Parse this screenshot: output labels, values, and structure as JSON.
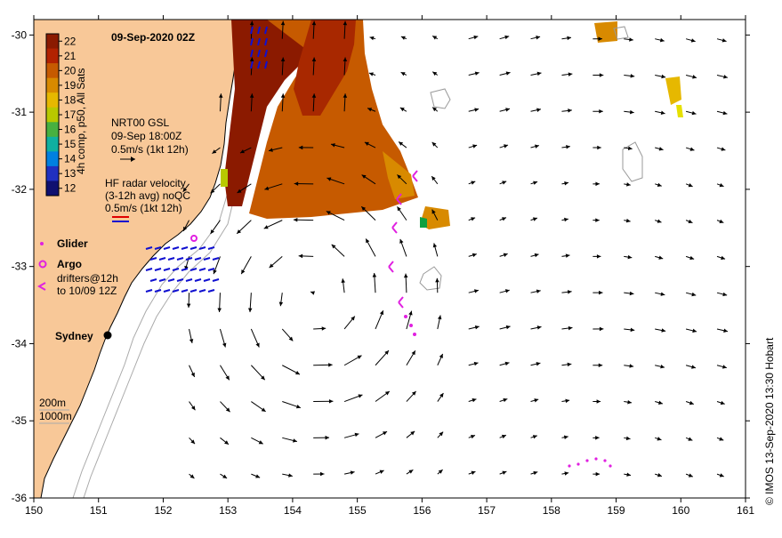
{
  "title": "09-Sep-2020 02Z",
  "colorbar": {
    "label": "4h comp, p50, All Sats",
    "ticks": [
      "22",
      "21",
      "20",
      "19",
      "18",
      "17",
      "16",
      "15",
      "14",
      "13",
      "12"
    ],
    "colors": [
      "#8b1a00",
      "#b22200",
      "#c65a00",
      "#d88a00",
      "#e6b800",
      "#b8c800",
      "#48b040",
      "#10b0a0",
      "#0080e0",
      "#2030c0",
      "#101070"
    ]
  },
  "map": {
    "lon_ticks": [
      "150",
      "151",
      "152",
      "153",
      "154",
      "155",
      "156",
      "157",
      "158",
      "159",
      "160",
      "161"
    ],
    "lat_ticks": [
      "-30",
      "-31",
      "-32",
      "-33",
      "-34",
      "-35",
      "-36"
    ],
    "lon_range": [
      150,
      161
    ],
    "lat_range": [
      -36,
      -29.8
    ]
  },
  "legend_nrt": {
    "line1": "NRT00 GSL",
    "line2": "09-Sep 18:00Z",
    "line3": "0.5m/s (1kt 12h)"
  },
  "legend_hf": {
    "line1": "HF radar velocity",
    "line2": "(3-12h avg) noQC",
    "line3": "0.5m/s (1kt 12h)"
  },
  "legend_platforms": {
    "glider": "Glider",
    "argo": "Argo",
    "drifters1": "drifters@12h",
    "drifters2": "to 10/09 12Z"
  },
  "place": {
    "name": "Sydney",
    "lon": 151.2,
    "lat": -33.87
  },
  "isobaths": {
    "depth1": "200m",
    "depth2": "1000m"
  },
  "credit": "© IMOS 13-Sep-2020 13:30 Hobart",
  "colors": {
    "land": "#f8c898",
    "vector": "#000000",
    "hf_radar": "#1010d0",
    "platform": "#e020e0",
    "isobath": "#aaaaaa"
  }
}
